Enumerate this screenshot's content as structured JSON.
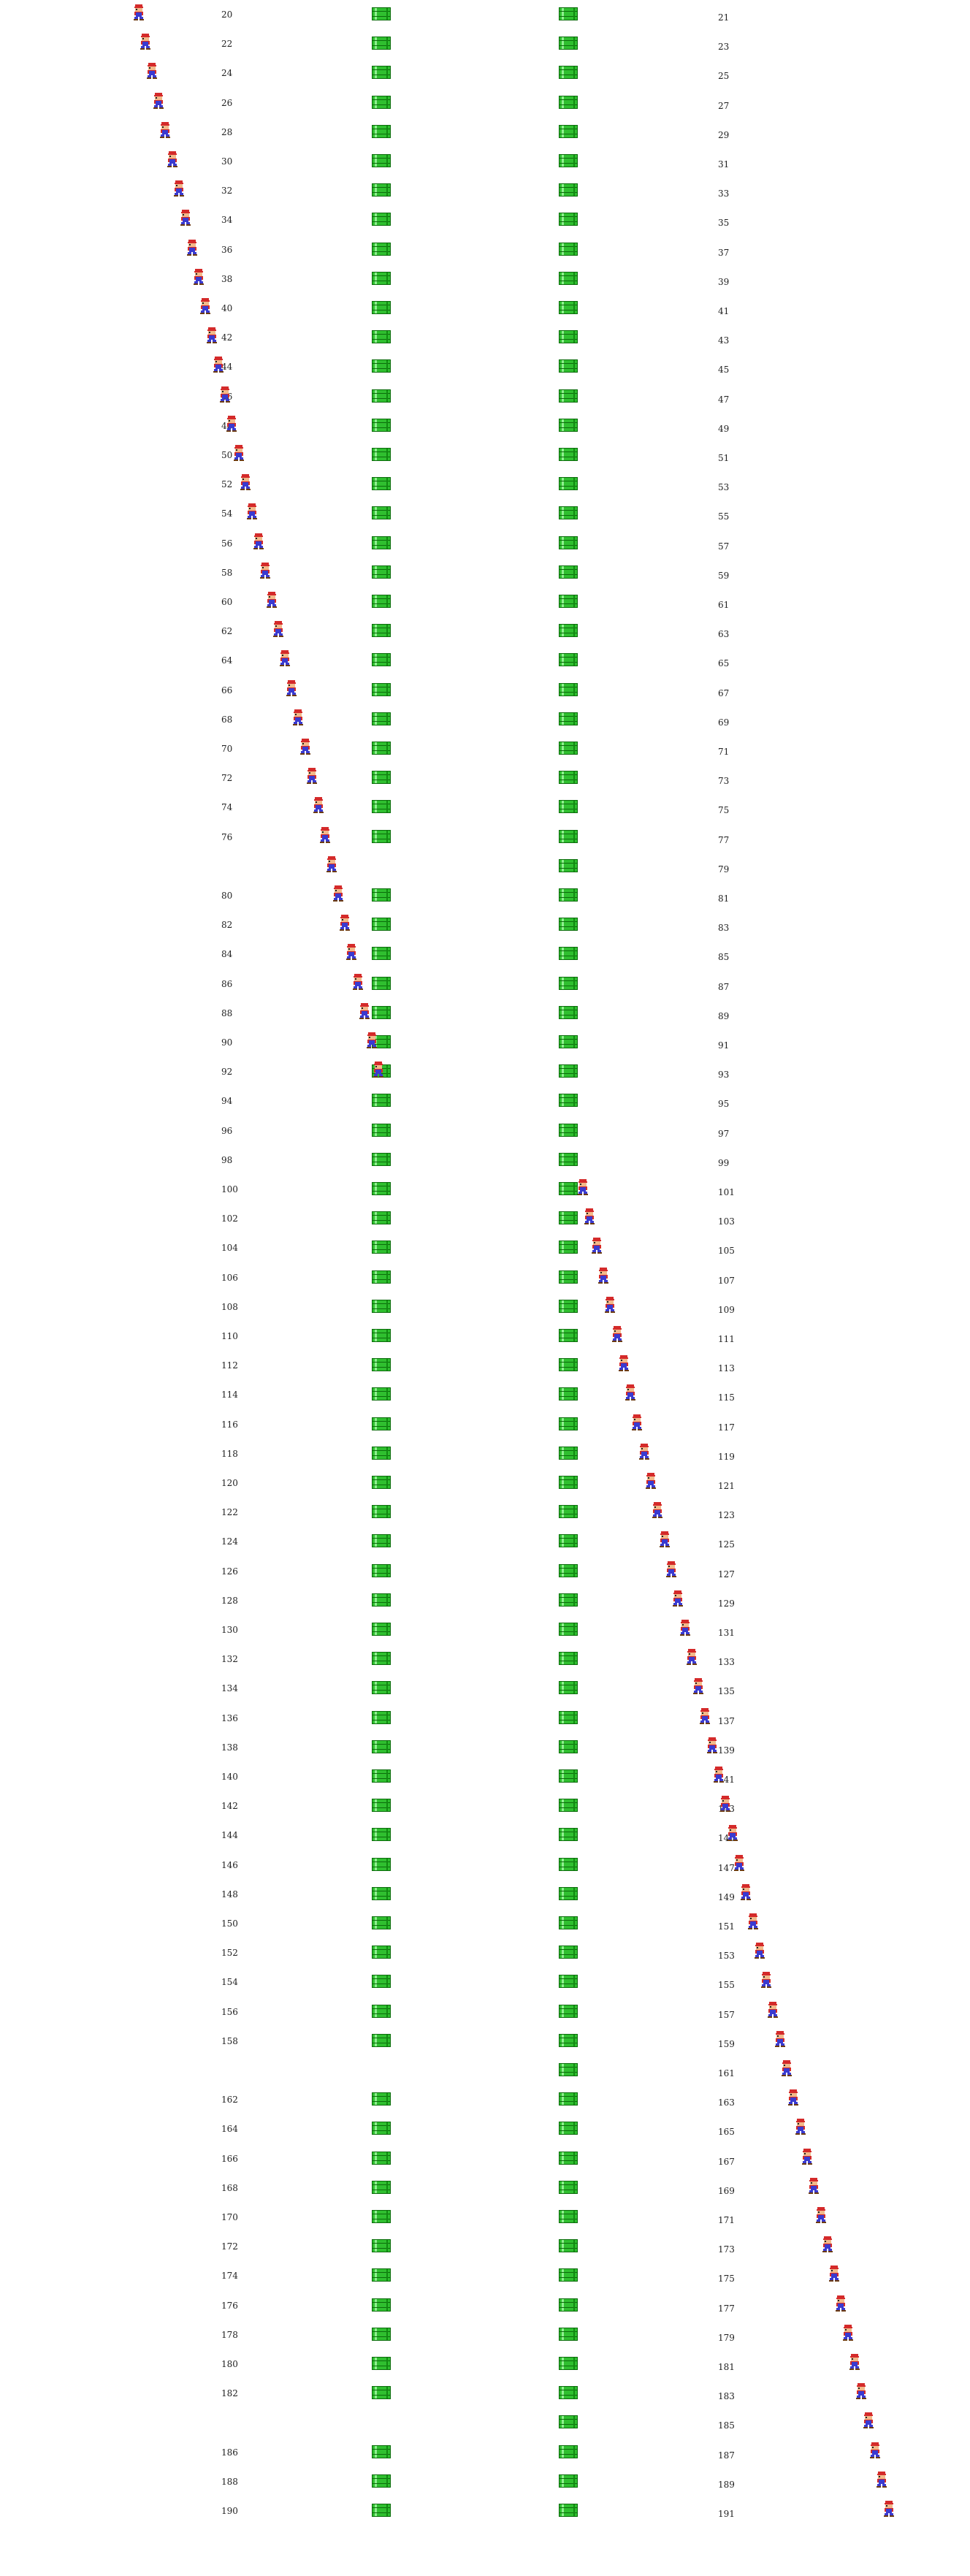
{
  "left_numbers": [
    20,
    22,
    24,
    26,
    28,
    30,
    32,
    34,
    36,
    38,
    40,
    42,
    44,
    46,
    48,
    50,
    52,
    54,
    56,
    58,
    60,
    62,
    64,
    66,
    68,
    70,
    72,
    74,
    76,
    null,
    80,
    82,
    84,
    86,
    88,
    90,
    92,
    94,
    96,
    98,
    100,
    102,
    104,
    106,
    108,
    110,
    112,
    114,
    116,
    118,
    120,
    122,
    124,
    126,
    128,
    130,
    132,
    134,
    136,
    138,
    140,
    142,
    144,
    146,
    148,
    150,
    152,
    154,
    156,
    158,
    null,
    162,
    164,
    166,
    168,
    170,
    172,
    174,
    176,
    178,
    180,
    182,
    null,
    186,
    188,
    190
  ],
  "right_numbers": [
    21,
    23,
    25,
    27,
    29,
    31,
    33,
    35,
    37,
    39,
    41,
    43,
    45,
    47,
    49,
    51,
    53,
    55,
    57,
    59,
    61,
    63,
    65,
    67,
    69,
    71,
    73,
    75,
    77,
    79,
    81,
    83,
    85,
    87,
    89,
    91,
    93,
    95,
    97,
    99,
    101,
    103,
    105,
    107,
    109,
    111,
    113,
    115,
    117,
    119,
    121,
    123,
    125,
    127,
    129,
    131,
    133,
    135,
    137,
    139,
    141,
    143,
    145,
    147,
    149,
    151,
    153,
    155,
    157,
    159,
    161,
    163,
    165,
    167,
    169,
    171,
    173,
    175,
    177,
    179,
    181,
    183,
    185,
    187,
    189,
    191
  ],
  "left_pipe_present": [
    1,
    1,
    1,
    1,
    1,
    1,
    1,
    1,
    1,
    1,
    1,
    1,
    1,
    1,
    1,
    1,
    1,
    1,
    1,
    1,
    1,
    1,
    1,
    1,
    1,
    1,
    1,
    1,
    1,
    0,
    1,
    1,
    1,
    1,
    1,
    1,
    1,
    1,
    1,
    1,
    1,
    1,
    1,
    1,
    1,
    1,
    1,
    1,
    1,
    1,
    1,
    1,
    1,
    1,
    1,
    1,
    1,
    1,
    1,
    1,
    1,
    1,
    1,
    1,
    1,
    1,
    1,
    1,
    1,
    1,
    0,
    1,
    1,
    1,
    1,
    1,
    1,
    1,
    1,
    1,
    1,
    1,
    0,
    1,
    1,
    1
  ],
  "right_pipe_present": [
    1,
    1,
    1,
    1,
    1,
    1,
    1,
    1,
    1,
    1,
    1,
    1,
    1,
    1,
    1,
    1,
    1,
    1,
    1,
    1,
    1,
    1,
    1,
    1,
    1,
    1,
    1,
    1,
    1,
    1,
    1,
    1,
    1,
    1,
    1,
    1,
    1,
    1,
    1,
    1,
    1,
    1,
    1,
    1,
    1,
    1,
    1,
    1,
    1,
    1,
    1,
    1,
    1,
    1,
    1,
    1,
    1,
    1,
    1,
    1,
    1,
    1,
    1,
    1,
    1,
    1,
    1,
    1,
    1,
    1,
    1,
    1,
    1,
    1,
    1,
    1,
    1,
    1,
    1,
    1,
    1,
    1,
    1,
    1,
    1,
    1
  ],
  "sprite_icon": "mario-sprite-icon",
  "pipe_icon": "green-pipe-icon",
  "colors": {
    "pipe": "#2fbf2f",
    "pipe_dark": "#0b6b0b",
    "mario_red": "#d42a2a",
    "mario_blue": "#3a3ad0",
    "skin": "#f2b98a"
  }
}
